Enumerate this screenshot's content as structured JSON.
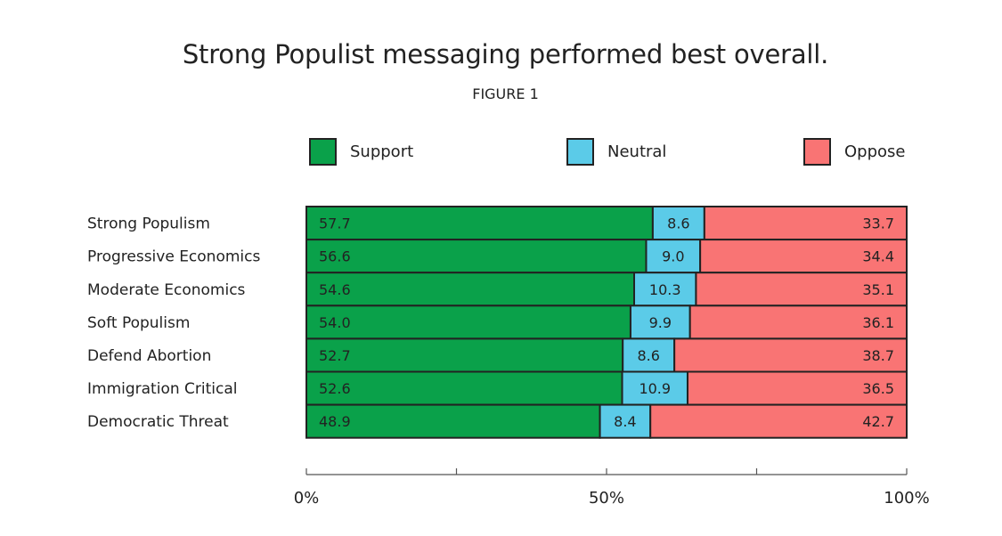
{
  "colors": {
    "support": "#0aa14a",
    "neutral": "#5bcbe8",
    "oppose": "#f97474",
    "border": "#222222"
  },
  "chart_data": {
    "type": "bar",
    "orientation": "horizontal",
    "stacked": true,
    "title": "Strong Populist messaging performed best overall.",
    "subtitle": "FIGURE 1",
    "categories": [
      "Strong Populism",
      "Progressive Economics",
      "Moderate Economics",
      "Soft Populism",
      "Defend Abortion",
      "Immigration Critical",
      "Democratic Threat"
    ],
    "series": [
      {
        "name": "Support",
        "values": [
          57.7,
          56.6,
          54.6,
          54.0,
          52.7,
          52.6,
          48.9
        ]
      },
      {
        "name": "Neutral",
        "values": [
          8.6,
          9.0,
          10.3,
          9.9,
          8.6,
          10.9,
          8.4
        ]
      },
      {
        "name": "Oppose",
        "values": [
          33.7,
          34.4,
          35.1,
          36.1,
          38.7,
          36.5,
          42.7
        ]
      }
    ],
    "value_labels": [
      [
        "57.7",
        "8.6",
        "33.7"
      ],
      [
        "56.6",
        "9.0",
        "34.4"
      ],
      [
        "54.6",
        "10.3",
        "35.1"
      ],
      [
        "54.0",
        "9.9",
        "36.1"
      ],
      [
        "52.7",
        "8.6",
        "38.7"
      ],
      [
        "52.6",
        "10.9",
        "36.5"
      ],
      [
        "48.9",
        "8.4",
        "42.7"
      ]
    ],
    "xlim": [
      0,
      100
    ],
    "x_ticks": [
      0,
      25,
      50,
      75,
      100
    ],
    "x_tick_labels": [
      "0%",
      "",
      "50%",
      "",
      "100%"
    ],
    "legend_position": "top",
    "grid": false
  }
}
